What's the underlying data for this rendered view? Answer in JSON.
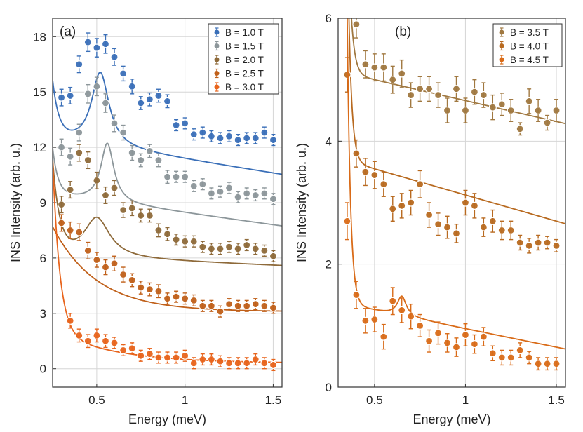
{
  "chart_data": [
    {
      "type": "scatter",
      "panel_label": "(a)",
      "xlabel": "Energy (meV)",
      "ylabel": "INS Intensity (arb. u.)",
      "xlim": [
        0.25,
        1.55
      ],
      "ylim": [
        -1.0,
        19.0
      ],
      "xticks": [
        0.5,
        1,
        1.5
      ],
      "xtick_labels": [
        "0.5",
        "1",
        "1.5"
      ],
      "yticks": [
        0,
        3,
        6,
        9,
        12,
        15,
        18
      ],
      "ytick_labels": [
        "0",
        "3",
        "6",
        "9",
        "12",
        "15",
        "18"
      ],
      "grid": true,
      "legend_position": "top-right",
      "series": [
        {
          "name": "B = 1.0 T",
          "color": "#3a6fb8",
          "x": [
            0.3,
            0.35,
            0.4,
            0.45,
            0.5,
            0.55,
            0.6,
            0.65,
            0.7,
            0.75,
            0.8,
            0.85,
            0.9,
            0.95,
            1.0,
            1.05,
            1.1,
            1.15,
            1.2,
            1.25,
            1.3,
            1.35,
            1.4,
            1.45,
            1.5
          ],
          "y": [
            14.7,
            14.8,
            16.5,
            17.7,
            17.4,
            17.6,
            16.9,
            16.0,
            15.3,
            14.4,
            14.6,
            14.8,
            14.5,
            13.2,
            13.3,
            12.7,
            12.8,
            12.6,
            12.5,
            12.6,
            12.4,
            12.5,
            12.5,
            12.8,
            12.4
          ],
          "errors": [
            0.45,
            0.45,
            0.45,
            0.5,
            0.5,
            0.5,
            0.45,
            0.4,
            0.4,
            0.35,
            0.35,
            0.35,
            0.35,
            0.3,
            0.3,
            0.3,
            0.3,
            0.3,
            0.3,
            0.3,
            0.3,
            0.3,
            0.3,
            0.3,
            0.3
          ],
          "fit": {
            "base": 12.1,
            "slope": -1.5,
            "amp_low": 3.0,
            "decay_low": 0.035,
            "x0": 0.25,
            "peak_amp": 4.0,
            "peak_center": 0.52,
            "peak_width": 0.12
          }
        },
        {
          "name": "B = 1.5 T",
          "color": "#8c969a",
          "x": [
            0.3,
            0.35,
            0.4,
            0.45,
            0.5,
            0.55,
            0.6,
            0.65,
            0.7,
            0.75,
            0.8,
            0.85,
            0.9,
            0.95,
            1.0,
            1.05,
            1.1,
            1.15,
            1.2,
            1.25,
            1.3,
            1.35,
            1.4,
            1.45,
            1.5
          ],
          "y": [
            12.0,
            11.5,
            12.8,
            14.9,
            15.3,
            14.4,
            13.3,
            12.8,
            11.7,
            11.3,
            11.8,
            11.3,
            10.4,
            10.4,
            10.4,
            9.9,
            10.0,
            9.5,
            9.6,
            9.8,
            9.3,
            9.5,
            9.4,
            9.5,
            9.2
          ],
          "errors": [
            0.45,
            0.45,
            0.45,
            0.5,
            0.5,
            0.5,
            0.45,
            0.4,
            0.4,
            0.35,
            0.35,
            0.35,
            0.35,
            0.3,
            0.3,
            0.3,
            0.3,
            0.3,
            0.3,
            0.3,
            0.3,
            0.3,
            0.3,
            0.3,
            0.3
          ],
          "fit": {
            "base": 9.1,
            "slope": -1.3,
            "amp_low": 2.5,
            "decay_low": 0.03,
            "x0": 0.25,
            "peak_amp": 3.2,
            "peak_center": 0.56,
            "peak_width": 0.09
          }
        },
        {
          "name": "B = 2.0 T",
          "color": "#8e6a3a",
          "x": [
            0.3,
            0.35,
            0.4,
            0.45,
            0.5,
            0.55,
            0.6,
            0.65,
            0.7,
            0.75,
            0.8,
            0.85,
            0.9,
            0.95,
            1.0,
            1.05,
            1.1,
            1.15,
            1.2,
            1.25,
            1.3,
            1.35,
            1.4,
            1.45,
            1.5
          ],
          "y": [
            8.9,
            9.7,
            11.7,
            11.3,
            10.2,
            9.4,
            9.8,
            8.6,
            8.7,
            8.3,
            8.3,
            7.5,
            7.3,
            7.0,
            6.9,
            6.9,
            6.6,
            6.5,
            6.5,
            6.6,
            6.5,
            6.7,
            6.5,
            6.4,
            6.1
          ],
          "errors": [
            0.45,
            0.45,
            0.45,
            0.45,
            0.45,
            0.45,
            0.4,
            0.4,
            0.4,
            0.35,
            0.35,
            0.35,
            0.35,
            0.3,
            0.3,
            0.3,
            0.3,
            0.3,
            0.3,
            0.3,
            0.3,
            0.3,
            0.3,
            0.3,
            0.3
          ],
          "fit": {
            "base": 6.0,
            "slope": -0.4,
            "amp_low": 5.0,
            "decay_low": 0.04,
            "x0": 0.25,
            "peak_amp": 2.2,
            "peak_center": 0.5,
            "peak_width": 0.18
          }
        },
        {
          "name": "B = 2.5 T",
          "color": "#c0601a",
          "x": [
            0.3,
            0.35,
            0.4,
            0.45,
            0.5,
            0.55,
            0.6,
            0.65,
            0.7,
            0.75,
            0.8,
            0.85,
            0.9,
            0.95,
            1.0,
            1.05,
            1.1,
            1.15,
            1.2,
            1.25,
            1.3,
            1.35,
            1.4,
            1.45,
            1.5
          ],
          "y": [
            7.9,
            7.5,
            7.4,
            6.4,
            5.9,
            5.5,
            5.7,
            5.1,
            4.8,
            4.4,
            4.3,
            4.2,
            3.8,
            3.9,
            3.8,
            3.7,
            3.4,
            3.4,
            3.1,
            3.5,
            3.4,
            3.4,
            3.5,
            3.4,
            3.3
          ],
          "errors": [
            0.45,
            0.45,
            0.45,
            0.45,
            0.4,
            0.4,
            0.4,
            0.4,
            0.35,
            0.35,
            0.35,
            0.35,
            0.3,
            0.3,
            0.3,
            0.3,
            0.3,
            0.3,
            0.3,
            0.3,
            0.3,
            0.3,
            0.3,
            0.3,
            0.3
          ],
          "fit": {
            "base": 3.1,
            "slope": 0.0,
            "amp_low": 4.6,
            "decay_low": 0.25,
            "x0": 0.25,
            "peak_amp": 0.0,
            "peak_center": 0.5,
            "peak_width": 0.1
          }
        },
        {
          "name": "B = 3.0 T",
          "color": "#e8641c",
          "x": [
            0.35,
            0.4,
            0.45,
            0.5,
            0.55,
            0.6,
            0.65,
            0.7,
            0.75,
            0.8,
            0.85,
            0.9,
            0.95,
            1.0,
            1.05,
            1.1,
            1.15,
            1.2,
            1.25,
            1.3,
            1.35,
            1.4,
            1.45,
            1.5
          ],
          "y": [
            2.6,
            1.8,
            1.5,
            1.8,
            1.5,
            1.4,
            1.0,
            1.1,
            0.7,
            0.8,
            0.6,
            0.6,
            0.6,
            0.7,
            0.3,
            0.5,
            0.5,
            0.4,
            0.3,
            0.3,
            0.3,
            0.5,
            0.3,
            0.2
          ],
          "errors": [
            0.4,
            0.35,
            0.35,
            0.35,
            0.35,
            0.3,
            0.3,
            0.3,
            0.3,
            0.3,
            0.3,
            0.3,
            0.3,
            0.3,
            0.3,
            0.3,
            0.3,
            0.3,
            0.3,
            0.3,
            0.3,
            0.3,
            0.3,
            0.3
          ],
          "fit": {
            "base": 0.3,
            "slope": 0.0,
            "amp_low": 12.0,
            "decay_low": 0.04,
            "x0": 0.24,
            "amp_mid": 1.8,
            "decay_mid": 0.35,
            "peak_amp": 0.0,
            "peak_center": 0.5,
            "peak_width": 0.1
          }
        }
      ]
    },
    {
      "type": "scatter",
      "panel_label": "(b)",
      "xlabel": "Energy (meV)",
      "ylabel": "INS Intensity (arb. u.)",
      "xlim": [
        0.3,
        1.55
      ],
      "ylim": [
        0,
        6
      ],
      "xticks": [
        0.5,
        1,
        1.5
      ],
      "xtick_labels": [
        "0.5",
        "1",
        "1.5"
      ],
      "yticks": [
        0,
        2,
        4,
        6
      ],
      "ytick_labels": [
        "0",
        "2",
        "4",
        "6"
      ],
      "grid": true,
      "legend_position": "top-right",
      "series": [
        {
          "name": "B = 3.5 T",
          "color": "#a07840",
          "x": [
            0.4,
            0.45,
            0.5,
            0.55,
            0.6,
            0.65,
            0.7,
            0.75,
            0.8,
            0.85,
            0.9,
            0.95,
            1.0,
            1.05,
            1.1,
            1.15,
            1.2,
            1.25,
            1.3,
            1.35,
            1.4,
            1.45,
            1.5
          ],
          "y": [
            5.9,
            5.25,
            5.2,
            5.2,
            5.0,
            5.1,
            4.75,
            4.85,
            4.85,
            4.75,
            4.5,
            4.85,
            4.5,
            4.8,
            4.75,
            4.55,
            4.6,
            4.5,
            4.2,
            4.65,
            4.5,
            4.3,
            4.5
          ],
          "errors": [
            0.22,
            0.22,
            0.22,
            0.22,
            0.22,
            0.22,
            0.2,
            0.2,
            0.2,
            0.2,
            0.2,
            0.2,
            0.2,
            0.2,
            0.2,
            0.2,
            0.18,
            0.18,
            0.1,
            0.2,
            0.18,
            0.12,
            0.18
          ],
          "fit": {
            "base": 5.0,
            "slope": -0.68,
            "amp_low": 8.0,
            "decay_low": 0.02,
            "x0": 0.33,
            "peak_amp": 0.0,
            "peak_center": 0.6,
            "peak_width": 0.1
          }
        },
        {
          "name": "B = 4.0 T",
          "color": "#b86a20",
          "x": [
            0.35,
            0.4,
            0.45,
            0.5,
            0.55,
            0.6,
            0.65,
            0.7,
            0.75,
            0.8,
            0.85,
            0.9,
            0.95,
            1.0,
            1.05,
            1.1,
            1.15,
            1.2,
            1.25,
            1.3,
            1.35,
            1.4,
            1.45,
            1.5
          ],
          "y": [
            5.08,
            3.8,
            3.5,
            3.45,
            3.3,
            2.9,
            2.95,
            3.0,
            3.3,
            2.8,
            2.65,
            2.6,
            2.5,
            3.0,
            2.95,
            2.6,
            2.7,
            2.55,
            2.55,
            2.35,
            2.3,
            2.35,
            2.35,
            2.3
          ],
          "errors": [
            0.28,
            0.22,
            0.22,
            0.22,
            0.2,
            0.2,
            0.2,
            0.2,
            0.22,
            0.2,
            0.18,
            0.18,
            0.15,
            0.2,
            0.2,
            0.15,
            0.18,
            0.15,
            0.15,
            0.12,
            0.12,
            0.12,
            0.1,
            0.1
          ],
          "fit": {
            "base": 3.55,
            "slope": -0.85,
            "amp_low": 12.0,
            "decay_low": 0.018,
            "x0": 0.33,
            "peak_amp": 0.0,
            "peak_center": 0.6,
            "peak_width": 0.1
          }
        },
        {
          "name": "B = 4.5 T",
          "color": "#d96b18",
          "x": [
            0.35,
            0.4,
            0.45,
            0.5,
            0.55,
            0.6,
            0.65,
            0.7,
            0.75,
            0.8,
            0.85,
            0.9,
            0.95,
            1.0,
            1.05,
            1.1,
            1.15,
            1.2,
            1.25,
            1.3,
            1.35,
            1.4,
            1.45,
            1.5
          ],
          "y": [
            2.7,
            1.5,
            1.08,
            1.1,
            0.82,
            1.4,
            1.25,
            1.15,
            1.0,
            0.75,
            0.88,
            0.72,
            0.65,
            0.85,
            0.7,
            0.82,
            0.55,
            0.48,
            0.48,
            0.6,
            0.48,
            0.38,
            0.38,
            0.38
          ],
          "errors": [
            0.3,
            0.22,
            0.2,
            0.2,
            0.2,
            0.22,
            0.2,
            0.2,
            0.18,
            0.18,
            0.18,
            0.15,
            0.15,
            0.18,
            0.15,
            0.15,
            0.12,
            0.12,
            0.12,
            0.12,
            0.1,
            0.1,
            0.1,
            0.1
          ],
          "fit": {
            "base": 1.25,
            "slope": -0.6,
            "amp_low": 14.0,
            "decay_low": 0.018,
            "x0": 0.33,
            "peak_amp": 0.32,
            "peak_center": 0.65,
            "peak_width": 0.06
          }
        }
      ]
    }
  ]
}
